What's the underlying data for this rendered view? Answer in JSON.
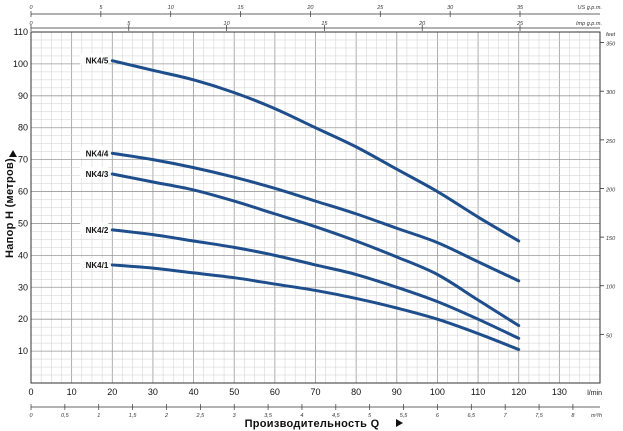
{
  "chart_data": {
    "type": "line",
    "xlabel": "Производительность Q",
    "ylabel": "Напор H (метров)",
    "x_unit": "l/min",
    "xlim": [
      0,
      140
    ],
    "ylim": [
      0,
      110
    ],
    "x_ticks": [
      0,
      10,
      20,
      30,
      40,
      50,
      60,
      70,
      80,
      90,
      100,
      110,
      120,
      130
    ],
    "y_ticks": [
      10,
      20,
      30,
      40,
      50,
      60,
      70,
      80,
      90,
      100,
      110
    ],
    "right_axis": {
      "unit": "feet",
      "ticks": [
        50,
        100,
        150,
        200,
        250,
        300,
        350
      ]
    },
    "bottom_secondary_axis": {
      "unit": "m³/h",
      "ticks": [
        "0",
        "0,5",
        "1",
        "1,5",
        "2",
        "2,5",
        "3",
        "3,5",
        "4",
        "4,5",
        "5",
        "5,5",
        "6",
        "6,5",
        "7",
        "7,5",
        "8"
      ]
    },
    "top_axis_1": {
      "unit": "US g.p.m.",
      "ticks": [
        "0",
        "5",
        "10",
        "15",
        "20",
        "25",
        "30",
        "35"
      ]
    },
    "top_axis_2": {
      "unit": "Imp g.p.m.",
      "ticks": [
        "0",
        "5",
        "10",
        "15",
        "20",
        "25"
      ]
    },
    "grid": true,
    "series": [
      {
        "name": "NK4/5",
        "x": [
          20,
          30,
          40,
          50,
          60,
          70,
          80,
          90,
          100,
          110,
          120
        ],
        "y": [
          101,
          98,
          95,
          91,
          86,
          80,
          74,
          67,
          60,
          52,
          44.5
        ]
      },
      {
        "name": "NK4/4",
        "x": [
          20,
          30,
          40,
          50,
          60,
          70,
          80,
          90,
          100,
          110,
          120
        ],
        "y": [
          72,
          70,
          67.5,
          64.5,
          61,
          57,
          53,
          48.5,
          44,
          38,
          32
        ]
      },
      {
        "name": "NK4/3",
        "x": [
          20,
          30,
          40,
          50,
          60,
          70,
          80,
          90,
          100,
          110,
          120
        ],
        "y": [
          65.5,
          63,
          60.5,
          57,
          53,
          49,
          44.5,
          39.5,
          34,
          26,
          18
        ]
      },
      {
        "name": "NK4/2",
        "x": [
          20,
          30,
          40,
          50,
          60,
          70,
          80,
          90,
          100,
          110,
          120
        ],
        "y": [
          48,
          46.5,
          44.5,
          42.5,
          40,
          37,
          34,
          30,
          25.5,
          20,
          14
        ]
      },
      {
        "name": "NK4/1",
        "x": [
          20,
          30,
          40,
          50,
          60,
          70,
          80,
          90,
          100,
          110,
          120
        ],
        "y": [
          37,
          36,
          34.5,
          33,
          31,
          29,
          26.5,
          23.5,
          20,
          15.5,
          10.5
        ]
      }
    ]
  }
}
